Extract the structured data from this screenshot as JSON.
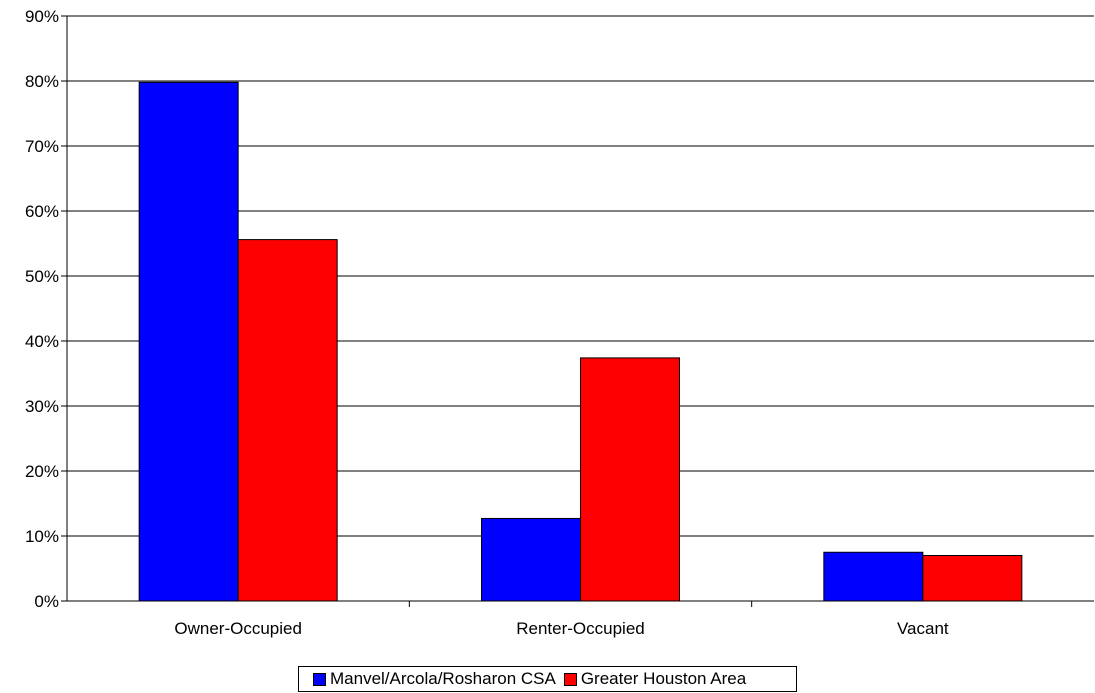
{
  "chart_data": {
    "type": "bar",
    "categories": [
      "Owner-Occupied",
      "Renter-Occupied",
      "Vacant"
    ],
    "series": [
      {
        "name": "Manvel/Arcola/Rosharon CSA",
        "color": "#0000FF",
        "values": [
          79.8,
          12.7,
          7.5
        ]
      },
      {
        "name": "Greater Houston Area",
        "color": "#FF0000",
        "values": [
          55.6,
          37.4,
          7.0
        ]
      }
    ],
    "ylim": [
      0,
      90
    ],
    "yticks": [
      "0%",
      "10%",
      "20%",
      "30%",
      "40%",
      "50%",
      "60%",
      "70%",
      "80%",
      "90%"
    ],
    "grid": true,
    "legend_position": "bottom"
  }
}
